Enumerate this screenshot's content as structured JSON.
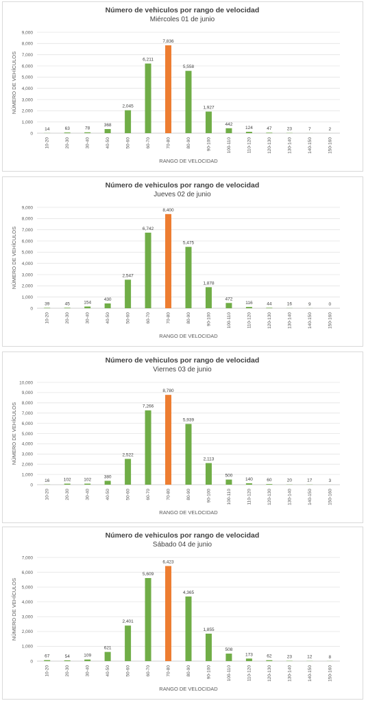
{
  "colors": {
    "bar": "#70ad47",
    "highlight": "#ed7d31"
  },
  "chart_data": [
    {
      "type": "bar",
      "title": "Número de vehiculos por rango de velocidad",
      "subtitle": "Miércoles 01 de junio",
      "xlabel": "RANGO DE VELOCIDAD",
      "ylabel": "NÚMERO DE VEHÍCULOS",
      "categories": [
        "10-20",
        "20-30",
        "30-40",
        "40-50",
        "50-60",
        "60-70",
        "70-80",
        "80-90",
        "90-100",
        "100-110",
        "110-120",
        "120-130",
        "130-140",
        "140-150",
        "150-160"
      ],
      "values": [
        14,
        63,
        78,
        368,
        2045,
        6211,
        7836,
        5558,
        1927,
        442,
        124,
        47,
        23,
        7,
        2
      ],
      "value_labels": [
        "14",
        "63",
        "78",
        "368",
        "2,045",
        "6,211",
        "7,836",
        "5,558",
        "1,927",
        "442",
        "124",
        "47",
        "23",
        "7",
        "2"
      ],
      "highlight_category": "70-80",
      "ylim": [
        0,
        9000
      ],
      "yticks": [
        "0",
        "1,000",
        "2,000",
        "3,000",
        "4,000",
        "5,000",
        "6,000",
        "7,000",
        "8,000",
        "9,000"
      ],
      "grid": true
    },
    {
      "type": "bar",
      "title": "Número de vehiculos por rango de velocidad",
      "subtitle": "Jueves 02 de junio",
      "xlabel": "RANGO DE VELOCIDAD",
      "ylabel": "NÚMERO DE VEHÍCULOS",
      "categories": [
        "10-20",
        "20-30",
        "30-40",
        "40-50",
        "50-60",
        "60-70",
        "70-80",
        "80-90",
        "90-100",
        "100-110",
        "110-120",
        "120-130",
        "130-140",
        "140-150",
        "150-160"
      ],
      "values": [
        39,
        45,
        154,
        430,
        2547,
        6742,
        8400,
        5475,
        1878,
        472,
        116,
        44,
        16,
        9,
        0
      ],
      "value_labels": [
        "39",
        "45",
        "154",
        "430",
        "2,547",
        "6,742",
        "8,400",
        "5,475",
        "1,878",
        "472",
        "116",
        "44",
        "16",
        "9",
        "0"
      ],
      "highlight_category": "70-80",
      "ylim": [
        0,
        9000
      ],
      "yticks": [
        "0",
        "1,000",
        "2,000",
        "3,000",
        "4,000",
        "5,000",
        "6,000",
        "7,000",
        "8,000",
        "9,000"
      ],
      "grid": true
    },
    {
      "type": "bar",
      "title": "Número de vehiculos por rango de velocidad",
      "subtitle": "Viernes 03 de junio",
      "xlabel": "RANGO DE VELOCIDAD",
      "ylabel": "NÚMERO DE VEHÍCULOS",
      "categories": [
        "10-20",
        "20-30",
        "30-40",
        "40-50",
        "50-60",
        "60-70",
        "70-80",
        "80-90",
        "90-100",
        "100-110",
        "110-120",
        "120-130",
        "130-140",
        "140-150",
        "150-160"
      ],
      "values": [
        16,
        102,
        102,
        380,
        2522,
        7266,
        8780,
        5939,
        2113,
        500,
        140,
        60,
        20,
        17,
        3
      ],
      "value_labels": [
        "16",
        "102",
        "102",
        "380",
        "2,522",
        "7,266",
        "8,780",
        "5,939",
        "2,113",
        "500",
        "140",
        "60",
        "20",
        "17",
        "3"
      ],
      "highlight_category": "70-80",
      "ylim": [
        0,
        10000
      ],
      "yticks": [
        "0",
        "1,000",
        "2,000",
        "3,000",
        "4,000",
        "5,000",
        "6,000",
        "7,000",
        "8,000",
        "9,000",
        "10,000"
      ],
      "grid": true
    },
    {
      "type": "bar",
      "title": "Número de vehiculos por rango de velocidad",
      "subtitle": "Sábado 04 de junio",
      "xlabel": "RANGO DE VELOCIDAD",
      "ylabel": "NÚMERO DE VEHÍCULOS",
      "categories": [
        "10-20",
        "20-30",
        "30-40",
        "40-50",
        "50-60",
        "60-70",
        "70-80",
        "80-90",
        "90-100",
        "100-110",
        "110-120",
        "120-130",
        "130-140",
        "140-150",
        "150-160"
      ],
      "values": [
        67,
        54,
        109,
        621,
        2401,
        5609,
        6423,
        4365,
        1855,
        508,
        173,
        62,
        23,
        12,
        8
      ],
      "value_labels": [
        "67",
        "54",
        "109",
        "621",
        "2,401",
        "5,609",
        "6,423",
        "4,365",
        "1,855",
        "508",
        "173",
        "62",
        "23",
        "12",
        "8"
      ],
      "highlight_category": "70-80",
      "ylim": [
        0,
        7000
      ],
      "yticks": [
        "0",
        "1,000",
        "2,000",
        "3,000",
        "4,000",
        "5,000",
        "6,000",
        "7,000"
      ],
      "grid": true
    }
  ]
}
